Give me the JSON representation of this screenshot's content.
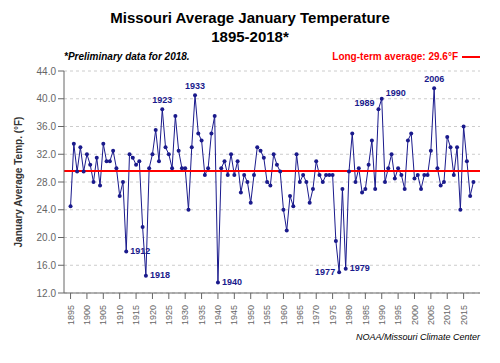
{
  "chart_data": {
    "type": "line",
    "title": "Missouri Average January Temperature",
    "subtitle": "1895-2018*",
    "y_label": "January Average Temp. (°F)",
    "note": "*Preliminary data for 2018.",
    "caption": "NOAA/Missouri Climate Center",
    "x": [
      1895,
      1896,
      1897,
      1898,
      1899,
      1900,
      1901,
      1902,
      1903,
      1904,
      1905,
      1906,
      1907,
      1908,
      1909,
      1910,
      1911,
      1912,
      1913,
      1914,
      1915,
      1916,
      1917,
      1918,
      1919,
      1920,
      1921,
      1922,
      1923,
      1924,
      1925,
      1926,
      1927,
      1928,
      1929,
      1930,
      1931,
      1932,
      1933,
      1934,
      1935,
      1936,
      1937,
      1938,
      1939,
      1940,
      1941,
      1942,
      1943,
      1944,
      1945,
      1946,
      1947,
      1948,
      1949,
      1950,
      1951,
      1952,
      1953,
      1954,
      1955,
      1956,
      1957,
      1958,
      1959,
      1960,
      1961,
      1962,
      1963,
      1964,
      1965,
      1966,
      1967,
      1968,
      1969,
      1970,
      1971,
      1972,
      1973,
      1974,
      1975,
      1976,
      1977,
      1978,
      1979,
      1980,
      1981,
      1982,
      1983,
      1984,
      1985,
      1986,
      1987,
      1988,
      1989,
      1990,
      1991,
      1992,
      1993,
      1994,
      1995,
      1996,
      1997,
      1998,
      1999,
      2000,
      2001,
      2002,
      2003,
      2004,
      2005,
      2006,
      2007,
      2008,
      2009,
      2010,
      2011,
      2012,
      2013,
      2014,
      2015,
      2016,
      2017,
      2018
    ],
    "values": [
      24.5,
      33.5,
      29.5,
      33.0,
      29.5,
      32.0,
      30.5,
      28.0,
      31.5,
      27.5,
      33.5,
      31.0,
      31.0,
      32.5,
      30.0,
      26.0,
      28.0,
      18.0,
      32.0,
      31.5,
      30.5,
      31.0,
      21.5,
      14.5,
      30.0,
      32.0,
      35.5,
      31.0,
      38.5,
      33.0,
      32.0,
      30.0,
      37.5,
      32.5,
      30.0,
      30.0,
      24.0,
      33.0,
      40.5,
      35.0,
      34.0,
      29.0,
      30.0,
      35.0,
      37.5,
      13.5,
      30.0,
      31.0,
      29.0,
      32.0,
      29.0,
      31.0,
      26.5,
      29.0,
      28.0,
      25.0,
      29.0,
      33.0,
      32.5,
      31.5,
      28.0,
      27.5,
      32.0,
      30.5,
      29.5,
      24.0,
      21.0,
      26.0,
      24.5,
      32.0,
      28.0,
      29.0,
      28.0,
      25.0,
      27.0,
      31.0,
      29.0,
      28.0,
      29.0,
      29.0,
      29.0,
      19.5,
      15.0,
      27.0,
      15.5,
      29.5,
      35.0,
      28.0,
      30.0,
      26.5,
      27.0,
      30.5,
      34.0,
      27.0,
      38.5,
      40.0,
      28.0,
      30.0,
      32.0,
      28.5,
      30.0,
      29.0,
      27.0,
      34.0,
      35.0,
      28.5,
      29.0,
      27.0,
      29.0,
      29.0,
      32.5,
      41.5,
      30.0,
      27.5,
      28.0,
      34.5,
      33.0,
      29.0,
      33.0,
      24.0,
      36.0,
      31.0,
      26.0,
      28.0
    ],
    "color": "#1a1a8c",
    "marker": "circle",
    "xlim": [
      1893,
      2020
    ],
    "xticks": [
      1895,
      1900,
      1905,
      1910,
      1915,
      1920,
      1925,
      1930,
      1935,
      1940,
      1945,
      1950,
      1955,
      1960,
      1965,
      1970,
      1975,
      1980,
      1985,
      1990,
      1995,
      2000,
      2005,
      2010,
      2015
    ],
    "ylim": [
      12.0,
      44.0
    ],
    "yticks": [
      {
        "value": 12.0,
        "label": "12.0"
      },
      {
        "value": 16.0,
        "label": "16.0"
      },
      {
        "value": 20.0,
        "label": "20.0"
      },
      {
        "value": 24.0,
        "label": "24.0"
      },
      {
        "value": 28.0,
        "label": "28.0"
      },
      {
        "value": 32.0,
        "label": "32.0"
      },
      {
        "value": 36.0,
        "label": "36.0"
      },
      {
        "value": 40.0,
        "label": "40.0"
      },
      {
        "value": 44.0,
        "label": "44.0"
      }
    ],
    "grid": true,
    "reference_line": {
      "y": 29.6,
      "label": "Long-term average: 29.6°F",
      "color": "#FF0000"
    },
    "annotations": [
      {
        "x": 1912,
        "text": "1912"
      },
      {
        "x": 1918,
        "text": "1918"
      },
      {
        "x": 1923,
        "text": "1923"
      },
      {
        "x": 1933,
        "text": "1933"
      },
      {
        "x": 1940,
        "text": "1940"
      },
      {
        "x": 1977,
        "text": "1977"
      },
      {
        "x": 1979,
        "text": "1979"
      },
      {
        "x": 1989,
        "text": "1989"
      },
      {
        "x": 1990,
        "text": "1990"
      },
      {
        "x": 2006,
        "text": "2006"
      }
    ]
  }
}
